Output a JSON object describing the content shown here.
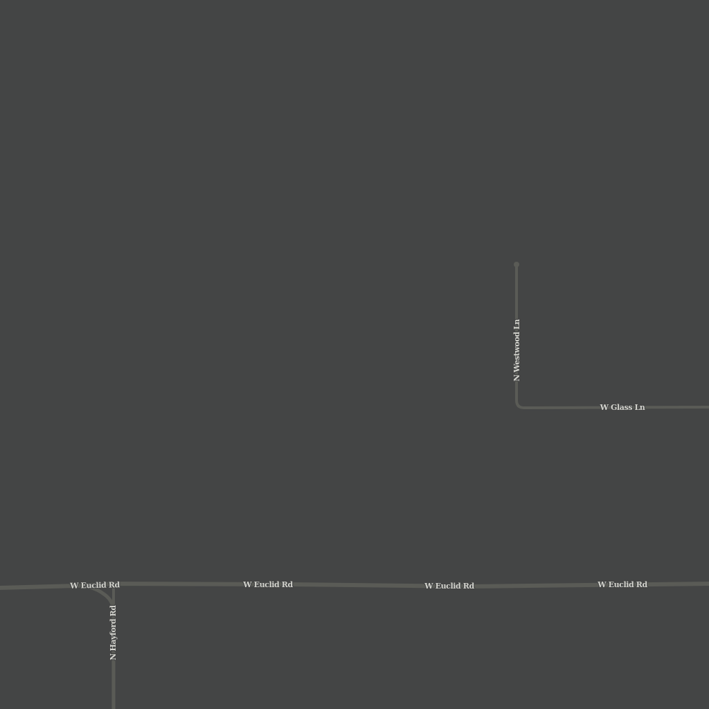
{
  "map": {
    "background_color": "#444545",
    "road_color": "#5a5b56",
    "label_color": "#d2d2cc",
    "roads": [
      {
        "name": "W Euclid Rd",
        "type": "arterial"
      },
      {
        "name": "N Hayford Rd",
        "type": "local"
      },
      {
        "name": "N Westwood Ln",
        "type": "residential"
      },
      {
        "name": "W Glass Ln",
        "type": "residential"
      }
    ],
    "labels": {
      "euclid_1": "W Euclid Rd",
      "euclid_2": "W Euclid Rd",
      "euclid_3": "W Euclid Rd",
      "euclid_4": "W Euclid Rd",
      "hayford": "N Hayford Rd",
      "westwood": "N Westwood Ln",
      "glass": "W Glass Ln"
    }
  }
}
